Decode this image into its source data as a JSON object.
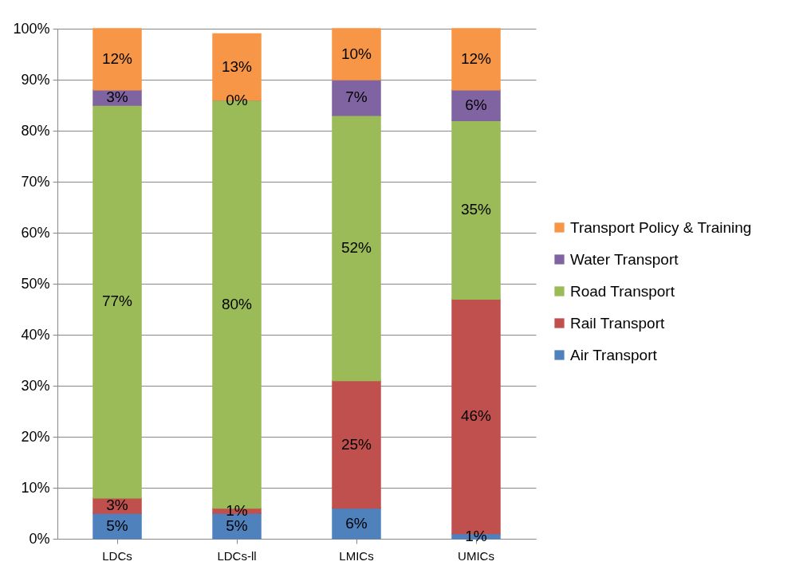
{
  "chart_data": {
    "type": "bar",
    "stacked": true,
    "categories": [
      "LDCs",
      "LDCs-ll",
      "LMICs",
      "UMICs"
    ],
    "series": [
      {
        "name": "Air Transport",
        "color": "#4f81bd",
        "values": [
          5,
          5,
          6,
          1
        ],
        "value_labels": [
          "5%",
          "5%",
          "6%",
          "1%"
        ]
      },
      {
        "name": "Rail Transport",
        "color": "#c0504d",
        "values": [
          3,
          1,
          25,
          46
        ],
        "value_labels": [
          "3%",
          "1%",
          "25%",
          "46%"
        ]
      },
      {
        "name": "Road Transport",
        "color": "#9bbb59",
        "values": [
          77,
          80,
          52,
          35
        ],
        "value_labels": [
          "77%",
          "80%",
          "52%",
          "35%"
        ]
      },
      {
        "name": "Water Transport",
        "color": "#8064a2",
        "values": [
          3,
          0,
          7,
          6
        ],
        "value_labels": [
          "3%",
          "0%",
          "7%",
          "6%"
        ]
      },
      {
        "name": "Transport Policy & Training",
        "color": "#f79646",
        "values": [
          12,
          13,
          10,
          12
        ],
        "value_labels": [
          "12%",
          "13%",
          "10%",
          "12%"
        ]
      }
    ],
    "ylim": [
      0,
      100
    ],
    "yticks": [
      {
        "value": 0,
        "label": "0%"
      },
      {
        "value": 10,
        "label": "10%"
      },
      {
        "value": 20,
        "label": "20%"
      },
      {
        "value": 30,
        "label": "30%"
      },
      {
        "value": 40,
        "label": "40%"
      },
      {
        "value": 50,
        "label": "50%"
      },
      {
        "value": 60,
        "label": "60%"
      },
      {
        "value": 70,
        "label": "70%"
      },
      {
        "value": 80,
        "label": "80%"
      },
      {
        "value": 90,
        "label": "90%"
      },
      {
        "value": 100,
        "label": "100%"
      }
    ],
    "grid": "y",
    "legend": "right"
  }
}
